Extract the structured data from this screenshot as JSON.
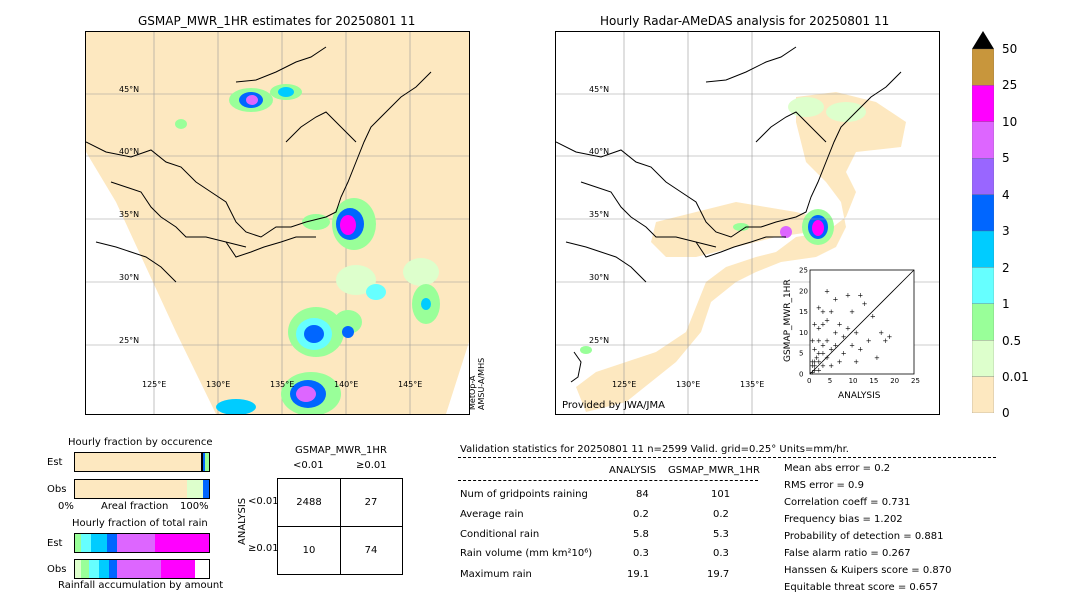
{
  "left_map": {
    "title": "GSMAP_MWR_1HR estimates for 20250801 11",
    "lat_labels": [
      "45°N",
      "40°N",
      "35°N",
      "30°N",
      "25°N"
    ],
    "lon_labels": [
      "125°E",
      "130°E",
      "135°E",
      "140°E",
      "145°E"
    ],
    "side_note_1": "MetOp-A",
    "side_note_2": "AMSU-A/MHS"
  },
  "right_map": {
    "title": "Hourly Radar-AMeDAS analysis for 20250801 11",
    "lat_labels": [
      "45°N",
      "40°N",
      "35°N",
      "30°N",
      "25°N"
    ],
    "lon_labels": [
      "125°E",
      "130°E",
      "135°E"
    ],
    "credit": "Provided by JWA/JMA"
  },
  "colorbar": {
    "labels": [
      "50",
      "25",
      "10",
      "5",
      "4",
      "3",
      "2",
      "1",
      "0.5",
      "0.01",
      "0"
    ],
    "colors": [
      "#c8963c",
      "#ff00ff",
      "#dd66ff",
      "#9966ff",
      "#0066ff",
      "#00ccff",
      "#66ffff",
      "#99ff99",
      "#ddffcc",
      "#fde8c0"
    ]
  },
  "scatter": {
    "xlabel": "ANALYSIS",
    "ylabel": "GSMAP_MWR_1HR",
    "ticks": [
      "0",
      "5",
      "10",
      "15",
      "20",
      "25"
    ]
  },
  "fraction_charts": {
    "title_occurrence": "Hourly fraction by occurence",
    "est_label": "Est",
    "obs_label": "Obs",
    "axis_left": "0%",
    "axis_mid": "Areal fraction",
    "axis_right": "100%",
    "title_total": "Hourly fraction of total rain",
    "footer": "Rainfall accumulation by amount"
  },
  "contingency": {
    "title": "GSMAP_MWR_1HR",
    "col_lt": "<0.01",
    "col_ge": "≥0.01",
    "row_axis": "ANALYSIS",
    "row_lt": "<0.01",
    "row_ge": "≥0.01",
    "cells": [
      "2488",
      "27",
      "10",
      "74"
    ]
  },
  "validation": {
    "header": "Validation statistics for 20250801 11  n=2599 Valid. grid=0.25° Units=mm/hr.",
    "col_analysis": "ANALYSIS",
    "col_gsmap": "GSMAP_MWR_1HR",
    "rows": [
      {
        "label": "Num of gridpoints raining",
        "a": "84",
        "g": "101"
      },
      {
        "label": "Average rain",
        "a": "0.2",
        "g": "0.2"
      },
      {
        "label": "Conditional rain",
        "a": "5.8",
        "g": "5.3"
      },
      {
        "label": "Rain volume (mm km²10⁶)",
        "a": "0.3",
        "g": "0.3"
      },
      {
        "label": "Maximum rain",
        "a": "19.1",
        "g": "19.7"
      }
    ],
    "scores": [
      "Mean abs error =    0.2",
      "RMS error =    0.9",
      "Correlation coeff =  0.731",
      "Frequency bias =  1.202",
      "Probability of detection =  0.881",
      "False alarm ratio =  0.267",
      "Hanssen & Kuipers score =  0.870",
      "Equitable threat score =  0.657"
    ]
  },
  "chart_data": {
    "type": "scatter",
    "xlabel": "ANALYSIS",
    "ylabel": "GSMAP_MWR_1HR",
    "xlim": [
      0,
      25
    ],
    "ylim": [
      0,
      25
    ],
    "points": [
      [
        0.5,
        0.5
      ],
      [
        1,
        1
      ],
      [
        1,
        2
      ],
      [
        2,
        1
      ],
      [
        0.5,
        3
      ],
      [
        1.5,
        4
      ],
      [
        2,
        3
      ],
      [
        3,
        2
      ],
      [
        3,
        5
      ],
      [
        4,
        4
      ],
      [
        4,
        8
      ],
      [
        5,
        2
      ],
      [
        5,
        6
      ],
      [
        6,
        7
      ],
      [
        6,
        10
      ],
      [
        7,
        12
      ],
      [
        7,
        3
      ],
      [
        8,
        5
      ],
      [
        8,
        9
      ],
      [
        9,
        11
      ],
      [
        9,
        19
      ],
      [
        10,
        7
      ],
      [
        10,
        15
      ],
      [
        11,
        3
      ],
      [
        11,
        10
      ],
      [
        12,
        6
      ],
      [
        12,
        19
      ],
      [
        13,
        17
      ],
      [
        14,
        8
      ],
      [
        15,
        14
      ],
      [
        16,
        4
      ],
      [
        17,
        10
      ],
      [
        18,
        8
      ],
      [
        19,
        9
      ],
      [
        1,
        6
      ],
      [
        2,
        8
      ],
      [
        3,
        12
      ],
      [
        4,
        13
      ],
      [
        4,
        20
      ],
      [
        5,
        15
      ],
      [
        6,
        18
      ],
      [
        2,
        11
      ],
      [
        3,
        15
      ],
      [
        0.5,
        8
      ],
      [
        1,
        12
      ],
      [
        2,
        16
      ],
      [
        3,
        7
      ],
      [
        1,
        3
      ],
      [
        2,
        5
      ],
      [
        0.5,
        2
      ]
    ],
    "counts": {
      "contingency": [
        [
          2488,
          27
        ],
        [
          10,
          74
        ]
      ]
    }
  }
}
